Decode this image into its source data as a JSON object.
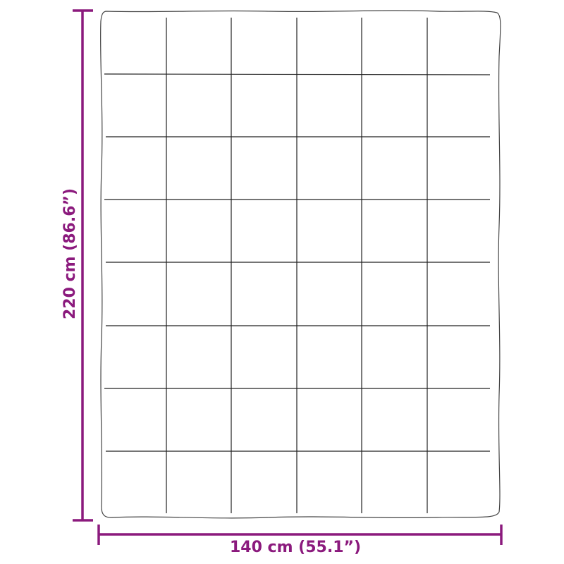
{
  "dimensions": {
    "height_label": "220 cm (86.6”)",
    "width_label": "140 cm (55.1”)"
  },
  "colors": {
    "dimension": "#8b1a7d",
    "outline": "#333333"
  },
  "quilt": {
    "columns": 6,
    "rows": 8
  }
}
